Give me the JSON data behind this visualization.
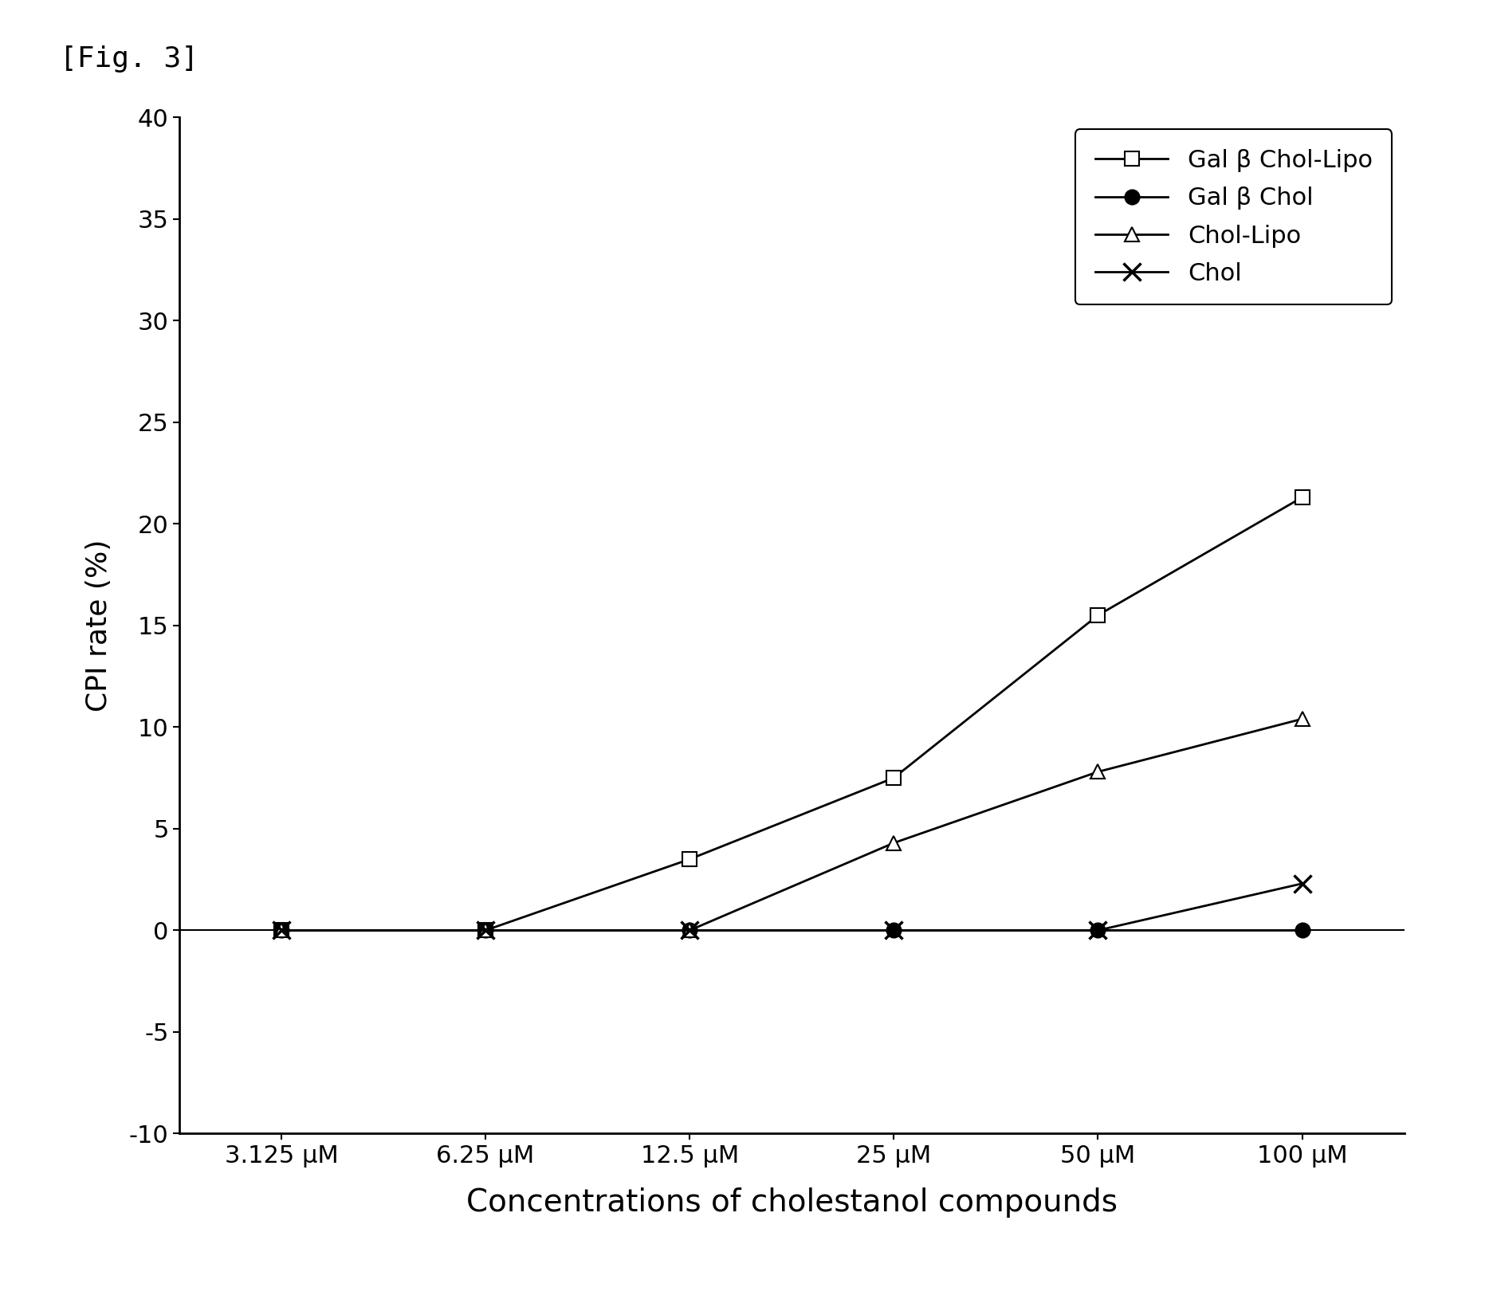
{
  "title": "[Fig. 3]",
  "xlabel": "Concentrations of cholestanol compounds",
  "ylabel": "CPI rate (%)",
  "x_labels": [
    "3.125 μM",
    "6.25 μM",
    "12.5 μM",
    "25 μM",
    "50 μM",
    "100 μM"
  ],
  "x_values": [
    0,
    1,
    2,
    3,
    4,
    5
  ],
  "ylim": [
    -10,
    40
  ],
  "yticks": [
    -10,
    -5,
    0,
    5,
    10,
    15,
    20,
    25,
    30,
    35,
    40
  ],
  "series": [
    {
      "label": "Gal β Chol-Lipo",
      "values": [
        0.0,
        0.0,
        3.5,
        7.5,
        15.5,
        21.3
      ],
      "marker": "s",
      "marker_fill": "white",
      "markersize": 13,
      "linestyle": "-",
      "color": "black"
    },
    {
      "label": "Gal β Chol",
      "values": [
        0.0,
        0.0,
        0.0,
        0.0,
        0.0,
        0.0
      ],
      "marker": "o",
      "marker_fill": "black",
      "markersize": 13,
      "linestyle": "-",
      "color": "black"
    },
    {
      "label": "Chol-Lipo",
      "values": [
        0.0,
        0.0,
        0.0,
        4.3,
        7.8,
        10.4
      ],
      "marker": "^",
      "marker_fill": "white",
      "markersize": 13,
      "linestyle": "-",
      "color": "black"
    },
    {
      "label": "Chol",
      "values": [
        0.0,
        0.0,
        0.0,
        0.0,
        0.0,
        2.3
      ],
      "marker": "x",
      "marker_fill": "black",
      "markersize": 16,
      "linestyle": "-",
      "color": "black"
    }
  ],
  "background_color": "white",
  "figure_width": 18.74,
  "figure_height": 16.35,
  "dpi": 100
}
